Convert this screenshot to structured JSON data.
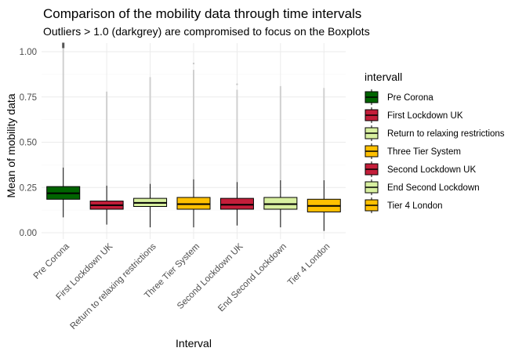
{
  "chart_data": {
    "type": "boxplot",
    "title": "Comparison of the mobility data through time intervals",
    "subtitle": "Outliers > 1.0 (darkgrey) are compromised to focus on the Boxplots",
    "xlabel": "Interval",
    "ylabel": "Mean of mobility data",
    "ylim": [
      0,
      1.05
    ],
    "yticks": [
      0,
      0.25,
      0.5,
      0.75,
      1.0
    ],
    "ytick_labels": [
      "0.00",
      "0.25",
      "0.50",
      "0.75",
      "1.00"
    ],
    "grid": true,
    "legend": {
      "title": "intervall",
      "position": "right"
    },
    "categories": [
      "Pre Corona",
      "First Lockdown UK",
      "Return to relaxing restrictions",
      "Three Tier System",
      "Second Lockdown UK",
      "End Second Lockdown",
      "Tier 4 London"
    ],
    "series": [
      {
        "name": "Pre Corona",
        "color": "#006400",
        "q1": 0.185,
        "median": 0.218,
        "q3": 0.255,
        "whisker_low": 0.085,
        "whisker_high": 0.36,
        "outlier_high": 1.05,
        "max_outlier_marker": 1.02
      },
      {
        "name": "First Lockdown UK",
        "color": "#C41E3A",
        "q1": 0.13,
        "median": 0.152,
        "q3": 0.175,
        "whisker_low": 0.045,
        "whisker_high": 0.26,
        "outlier_high": 0.78
      },
      {
        "name": "Return to relaxing restrictions",
        "color": "#D8F0A0",
        "q1": 0.145,
        "median": 0.165,
        "q3": 0.19,
        "whisker_low": 0.03,
        "whisker_high": 0.27,
        "outlier_high": 0.86
      },
      {
        "name": "Three Tier System",
        "color": "#FFC000",
        "q1": 0.13,
        "median": 0.158,
        "q3": 0.195,
        "whisker_low": 0.03,
        "whisker_high": 0.295,
        "outlier_high": 0.9,
        "extra_outlier": 0.935
      },
      {
        "name": "Second Lockdown UK",
        "color": "#C41E3A",
        "q1": 0.13,
        "median": 0.155,
        "q3": 0.19,
        "whisker_low": 0.04,
        "whisker_high": 0.28,
        "outlier_high": 0.79,
        "extra_outlier": 0.82
      },
      {
        "name": "End Second Lockdown",
        "color": "#D8F0A0",
        "q1": 0.13,
        "median": 0.158,
        "q3": 0.195,
        "whisker_low": 0.03,
        "whisker_high": 0.29,
        "outlier_high": 0.81
      },
      {
        "name": "Tier 4 London",
        "color": "#FFC000",
        "q1": 0.115,
        "median": 0.148,
        "q3": 0.185,
        "whisker_low": 0.01,
        "whisker_high": 0.29,
        "outlier_high": 0.8
      }
    ]
  }
}
